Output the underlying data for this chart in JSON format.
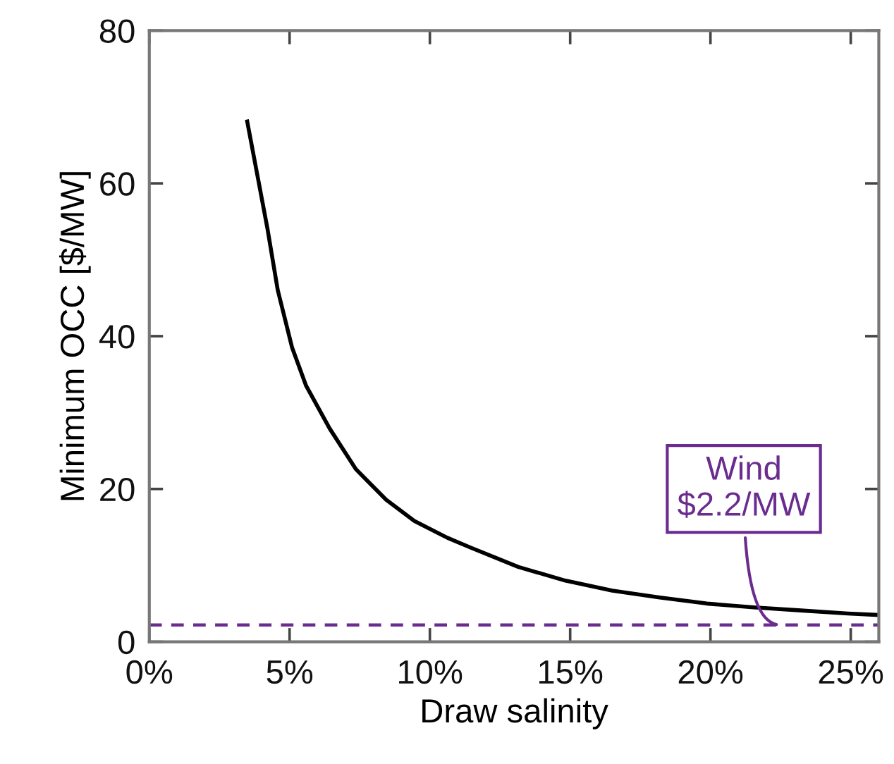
{
  "chart_data": {
    "type": "line",
    "xlabel": "Draw salinity",
    "ylabel": "Minimum OCC [$/MW]",
    "series": [
      {
        "color": "#000000",
        "x": [
          3.49,
          3.83,
          4.21,
          4.58,
          5.09,
          5.59,
          6.43,
          7.36,
          8.44,
          9.45,
          10.63,
          11.47,
          12.81,
          13.15,
          14.83,
          16.5,
          18.19,
          19.87,
          21.54,
          23.22,
          24.9,
          26.0
        ],
        "values": [
          68.1,
          61.5,
          54.1,
          46.0,
          38.5,
          33.5,
          27.9,
          22.6,
          18.6,
          15.8,
          13.6,
          12.3,
          10.3,
          9.8,
          8.0,
          6.7,
          5.8,
          5.0,
          4.5,
          4.1,
          3.7,
          3.5
        ]
      }
    ],
    "xlim": [
      0,
      26
    ],
    "xticks": [
      {
        "value": 0,
        "label": "0%"
      },
      {
        "value": 5,
        "label": "5%"
      },
      {
        "value": 10,
        "label": "10%"
      },
      {
        "value": 15,
        "label": "15%"
      },
      {
        "value": 20,
        "label": "20%"
      },
      {
        "value": 25,
        "label": "25%"
      }
    ],
    "ylim": [
      0,
      80
    ],
    "yticks": [
      0,
      20,
      40,
      60,
      80
    ],
    "ref_lines": [
      {
        "axis": "y",
        "value": 2.2,
        "label": "Wind\n$2.2/MW",
        "color": "#6a2c8e",
        "line_style": "dashed"
      }
    ],
    "grid": false,
    "legend": false,
    "marker": "none",
    "line_style": "solid"
  }
}
